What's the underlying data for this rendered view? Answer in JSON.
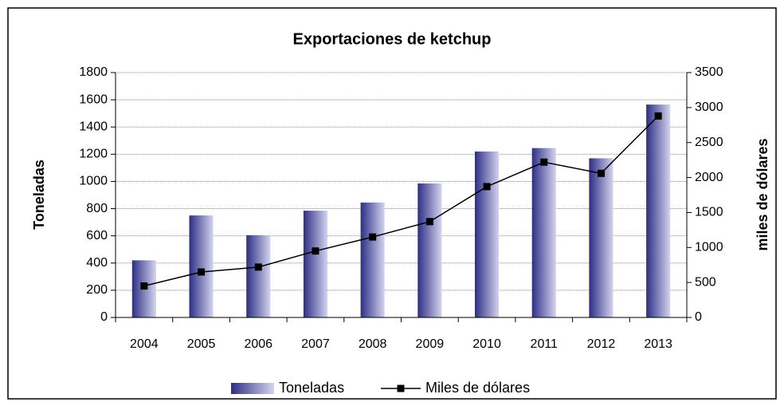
{
  "chart_data": {
    "type": "bar_line",
    "title": "Exportaciones de ketchup",
    "y_label": "Toneladas",
    "y2_label": "miles de dólares",
    "categories": [
      "2004",
      "2005",
      "2006",
      "2007",
      "2008",
      "2009",
      "2010",
      "2011",
      "2012",
      "2013"
    ],
    "series": [
      {
        "name": "Toneladas",
        "type": "bar",
        "color": "#2e2e85",
        "values": [
          420,
          750,
          605,
          785,
          845,
          985,
          1220,
          1245,
          1170,
          1565
        ]
      },
      {
        "name": "Miles de dólares",
        "type": "line",
        "axis": "y2",
        "color": "#000000",
        "values": [
          450,
          650,
          720,
          950,
          1150,
          1370,
          1870,
          2220,
          2060,
          2880
        ]
      }
    ],
    "ylim": [
      0,
      1800
    ],
    "yticks": [
      0,
      200,
      400,
      600,
      800,
      1000,
      1200,
      1400,
      1600,
      1800
    ],
    "y2lim": [
      0,
      3500
    ],
    "y2ticks": [
      0,
      500,
      1000,
      1500,
      2000,
      2500,
      3000,
      3500
    ],
    "grid": true,
    "legend": "bottom"
  }
}
